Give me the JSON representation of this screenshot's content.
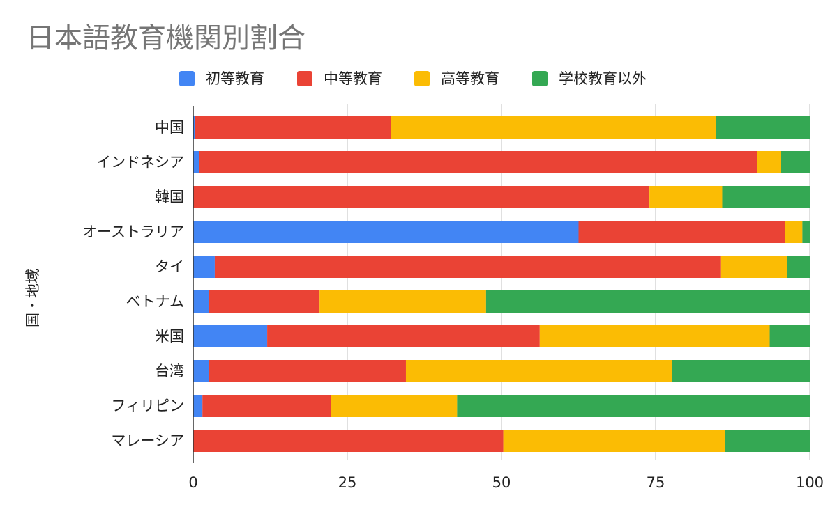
{
  "chart_data": {
    "type": "bar",
    "orientation": "horizontal",
    "stacked": true,
    "title": "日本語教育機関別割合",
    "ylabel": "国・地域",
    "xlabel": "",
    "xlim": [
      0,
      100
    ],
    "xticks": [
      "0",
      "25",
      "50",
      "75",
      "100"
    ],
    "legend_position": "top",
    "grid": true,
    "categories": [
      "中国",
      "インドネシア",
      "韓国",
      "オーストラリア",
      "タイ",
      "ベトナム",
      "米国",
      "台湾",
      "フィリピン",
      "マレーシア"
    ],
    "series": [
      {
        "name": "初等教育",
        "color": "#4285f4",
        "values": [
          0.3,
          1,
          0,
          62.5,
          3.5,
          2.5,
          12,
          2.5,
          1.5,
          0
        ]
      },
      {
        "name": "中等教育",
        "color": "#ea4335",
        "values": [
          31.8,
          90.5,
          74,
          33.5,
          82,
          18,
          44.2,
          32,
          20.8,
          50.3
        ]
      },
      {
        "name": "高等教育",
        "color": "#fbbc04",
        "values": [
          52.7,
          3.8,
          11.8,
          2.8,
          10.8,
          27,
          37.3,
          43.2,
          20.5,
          35.9
        ]
      },
      {
        "name": "学校教育以外",
        "color": "#34a853",
        "values": [
          15.2,
          4.7,
          14.2,
          1.2,
          3.7,
          52.5,
          6.5,
          22.3,
          57.2,
          13.8
        ]
      }
    ]
  }
}
